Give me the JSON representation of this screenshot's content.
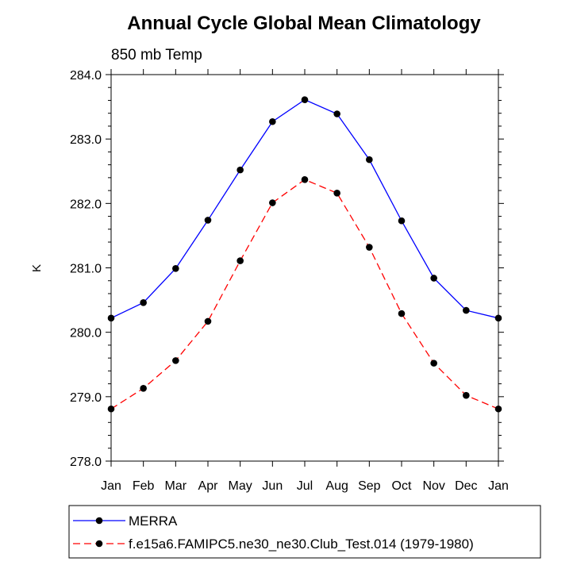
{
  "chart_data": {
    "type": "line",
    "title": "Annual Cycle Global Mean Climatology",
    "subtitle": "850 mb Temp",
    "xlabel": "",
    "ylabel": "K",
    "categories": [
      "Jan",
      "Feb",
      "Mar",
      "Apr",
      "May",
      "Jun",
      "Jul",
      "Aug",
      "Sep",
      "Oct",
      "Nov",
      "Dec",
      "Jan"
    ],
    "ylim": [
      278.0,
      284.0
    ],
    "yticks": [
      "278.0",
      "279.0",
      "280.0",
      "281.0",
      "282.0",
      "283.0",
      "284.0"
    ],
    "grid": false,
    "legend_position": "bottom",
    "series": [
      {
        "name": "MERRA",
        "color": "#0000ff",
        "dash": "solid",
        "marker": "circle",
        "values": [
          280.22,
          280.46,
          280.99,
          281.74,
          282.52,
          283.27,
          283.61,
          283.39,
          282.68,
          281.73,
          280.84,
          280.34,
          280.22
        ]
      },
      {
        "name": "f.e15a6.FAMIPC5.ne30_ne30.Club_Test.014 (1979-1980)",
        "color": "#ff0000",
        "dash": "dashed",
        "marker": "circle",
        "values": [
          278.81,
          279.13,
          279.56,
          280.17,
          281.11,
          282.01,
          282.37,
          282.16,
          281.32,
          280.29,
          279.52,
          279.02,
          278.81
        ]
      }
    ]
  }
}
